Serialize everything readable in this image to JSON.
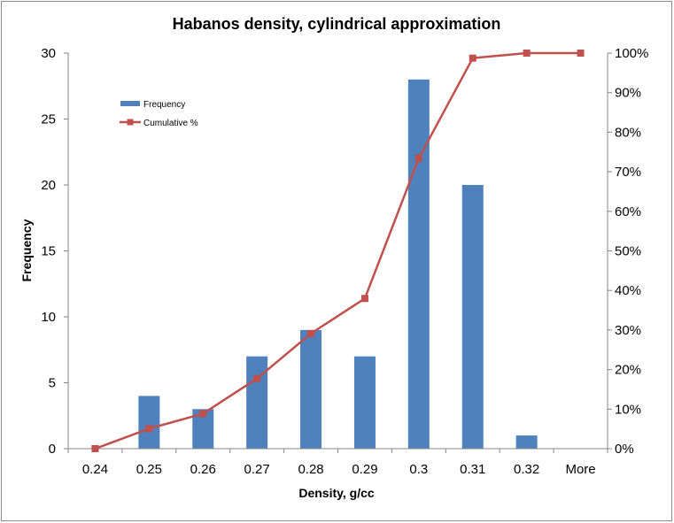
{
  "chart_data": {
    "type": "bar",
    "title": "Habanos density, cylindrical approximation",
    "xlabel": "Density, g/cc",
    "ylabel": "Frequency",
    "categories": [
      "0.24",
      "0.25",
      "0.26",
      "0.27",
      "0.28",
      "0.29",
      "0.3",
      "0.31",
      "0.32",
      "More"
    ],
    "series": [
      {
        "name": "Frequency",
        "type": "bar",
        "axis": "left",
        "color": "#4F81BD",
        "values": [
          0,
          4,
          3,
          7,
          9,
          7,
          28,
          20,
          1,
          0
        ]
      },
      {
        "name": "Cumulative %",
        "type": "line",
        "axis": "right",
        "color": "#C0504D",
        "values": [
          0,
          0.0506,
          0.0886,
          0.1772,
          0.2911,
          0.3797,
          0.7342,
          0.9873,
          1.0,
          1.0
        ]
      }
    ],
    "ylim": [
      0,
      30
    ],
    "y_ticks": [
      "0",
      "5",
      "10",
      "15",
      "20",
      "25",
      "30"
    ],
    "y2lim": [
      0,
      1
    ],
    "y2_ticks": [
      "0%",
      "10%",
      "20%",
      "30%",
      "40%",
      "50%",
      "60%",
      "70%",
      "80%",
      "90%",
      "100%"
    ],
    "grid": false,
    "legend_position": "top-left"
  }
}
